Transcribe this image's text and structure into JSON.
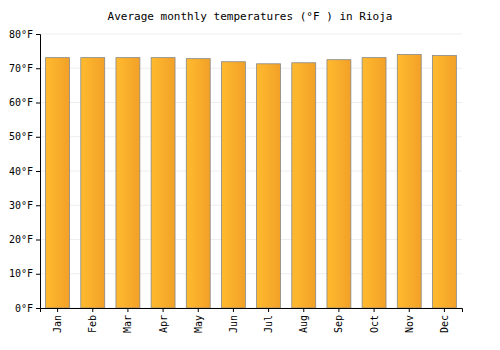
{
  "chart_data": {
    "type": "bar",
    "title": "Average monthly temperatures (°F ) in Rioja",
    "categories": [
      "Jan",
      "Feb",
      "Mar",
      "Apr",
      "May",
      "Jun",
      "Jul",
      "Aug",
      "Sep",
      "Oct",
      "Nov",
      "Dec"
    ],
    "values": [
      73.1,
      73.1,
      73.1,
      73.1,
      72.8,
      71.9,
      71.3,
      71.6,
      72.5,
      73.1,
      74.0,
      73.7
    ],
    "color": "#ffaa2a",
    "ylim": [
      0,
      80
    ],
    "yticks": [
      {
        "value": 0,
        "label": "0°F"
      },
      {
        "value": 10,
        "label": "10°F"
      },
      {
        "value": 20,
        "label": "20°F"
      },
      {
        "value": 30,
        "label": "30°F"
      },
      {
        "value": 40,
        "label": "40°F"
      },
      {
        "value": 50,
        "label": "50°F"
      },
      {
        "value": 60,
        "label": "60°F"
      },
      {
        "value": 70,
        "label": "70°F"
      },
      {
        "value": 80,
        "label": "80°F"
      }
    ],
    "grid": true
  }
}
